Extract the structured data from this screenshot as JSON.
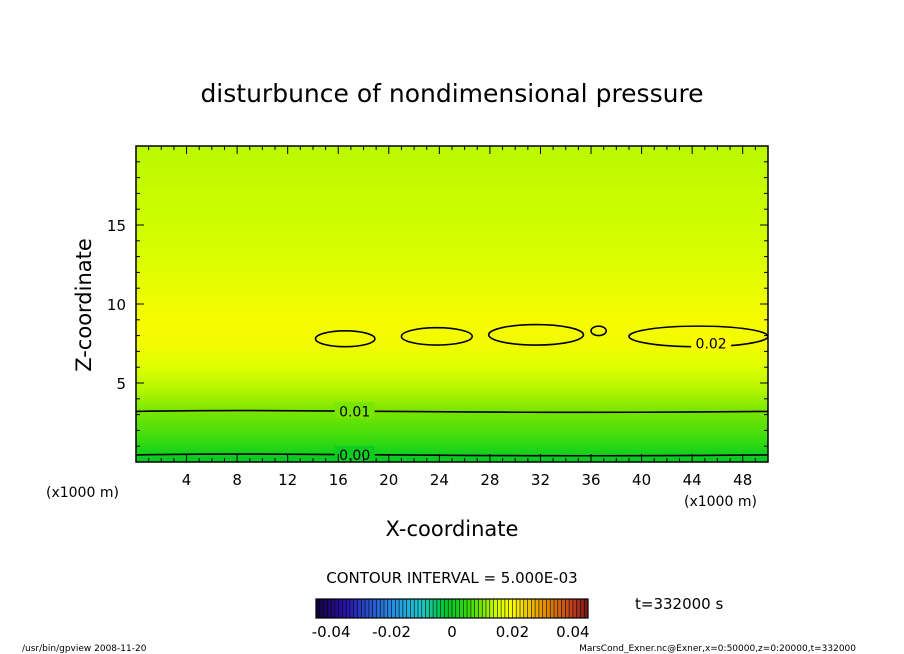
{
  "chart_data": {
    "type": "heatmap",
    "title": "disturbunce of nondimensional pressure",
    "xlabel": "X-coordinate",
    "ylabel": "Z-coordinate",
    "x_unit": "(x1000 m)",
    "y_unit": "(x1000 m)",
    "xlim": [
      0,
      50
    ],
    "ylim": [
      0,
      20
    ],
    "x_ticks": [
      4,
      8,
      12,
      16,
      20,
      24,
      28,
      32,
      36,
      40,
      44,
      48
    ],
    "y_ticks": [
      5,
      10,
      15
    ],
    "z_profile": [
      {
        "z": 0.0,
        "value": -0.002
      },
      {
        "z": 1.0,
        "value": 0.004
      },
      {
        "z": 2.0,
        "value": 0.007
      },
      {
        "z": 3.2,
        "value": 0.01
      },
      {
        "z": 4.5,
        "value": 0.013
      },
      {
        "z": 6.0,
        "value": 0.016
      },
      {
        "z": 7.5,
        "value": 0.019
      },
      {
        "z": 9.0,
        "value": 0.0195
      },
      {
        "z": 10.5,
        "value": 0.018
      },
      {
        "z": 12.5,
        "value": 0.016
      },
      {
        "z": 15.0,
        "value": 0.0145
      },
      {
        "z": 20.0,
        "value": 0.0135
      }
    ],
    "contour_lines": [
      {
        "label": "0.00",
        "value": 0.0,
        "z": 0.45,
        "label_x": 17.3
      },
      {
        "label": "0.01",
        "value": 0.01,
        "z": 3.2,
        "label_x": 17.3
      },
      {
        "label": "0.02",
        "value": 0.02,
        "label_x": 45.5,
        "label_z": 7.5,
        "islands": [
          {
            "x": [
              14.2,
              18.9
            ],
            "z": [
              7.3,
              8.3
            ]
          },
          {
            "x": [
              21.0,
              26.6
            ],
            "z": [
              7.4,
              8.5
            ]
          },
          {
            "x": [
              27.9,
              35.4
            ],
            "z": [
              7.4,
              8.7
            ]
          },
          {
            "x": [
              36.0,
              37.2
            ],
            "z": [
              8.0,
              8.6
            ]
          },
          {
            "x": [
              39.0,
              50.0
            ],
            "z": [
              7.3,
              8.6
            ]
          }
        ]
      }
    ],
    "contour_interval": "CONTOUR INTERVAL = 5.000E-03",
    "colorbar": {
      "ticks": [
        "-0.04",
        "-0.02",
        "0",
        "0.02",
        "0.04"
      ],
      "range": [
        -0.045,
        0.045
      ]
    },
    "time_label": "t=332000 s"
  },
  "footer": {
    "left": "/usr/bin/gpview   2008-11-20",
    "right": "MarsCond_Exner.nc@Exner,x=0:50000,z=0:20000,t=332000"
  }
}
